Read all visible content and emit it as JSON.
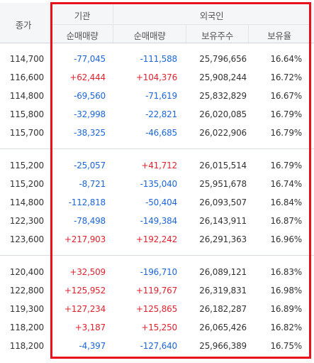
{
  "header": {
    "price_label": "종가",
    "institution_group": "기관",
    "foreign_group": "외국인",
    "institution_net": "순매매량",
    "foreign_net": "순매매량",
    "foreign_shares": "보유주수",
    "foreign_ratio": "보유율"
  },
  "colors": {
    "positive": "#e0222f",
    "negative": "#1c66d8",
    "highlight_border": "#e8111b"
  },
  "groups": [
    {
      "rows": [
        {
          "price": "114,700",
          "inst": "-77,045",
          "foreign": "-111,588",
          "shares": "25,796,656",
          "ratio": "16.64%"
        },
        {
          "price": "116,600",
          "inst": "+62,444",
          "foreign": "+104,376",
          "shares": "25,908,244",
          "ratio": "16.72%"
        },
        {
          "price": "114,800",
          "inst": "-69,560",
          "foreign": "-71,619",
          "shares": "25,832,829",
          "ratio": "16.67%"
        },
        {
          "price": "115,800",
          "inst": "-32,998",
          "foreign": "-22,821",
          "shares": "26,020,085",
          "ratio": "16.79%"
        },
        {
          "price": "115,700",
          "inst": "-38,325",
          "foreign": "-46,685",
          "shares": "26,022,906",
          "ratio": "16.79%"
        }
      ]
    },
    {
      "rows": [
        {
          "price": "115,200",
          "inst": "-25,057",
          "foreign": "+41,712",
          "shares": "26,015,514",
          "ratio": "16.79%"
        },
        {
          "price": "115,200",
          "inst": "-8,721",
          "foreign": "-135,040",
          "shares": "25,951,678",
          "ratio": "16.74%"
        },
        {
          "price": "114,800",
          "inst": "-112,818",
          "foreign": "-50,404",
          "shares": "26,093,507",
          "ratio": "16.84%"
        },
        {
          "price": "122,300",
          "inst": "-78,498",
          "foreign": "-149,384",
          "shares": "26,143,911",
          "ratio": "16.87%"
        },
        {
          "price": "123,600",
          "inst": "+217,903",
          "foreign": "+192,242",
          "shares": "26,291,363",
          "ratio": "16.96%"
        }
      ]
    },
    {
      "rows": [
        {
          "price": "120,400",
          "inst": "+32,509",
          "foreign": "-196,710",
          "shares": "26,089,121",
          "ratio": "16.83%"
        },
        {
          "price": "122,800",
          "inst": "+125,952",
          "foreign": "+119,767",
          "shares": "26,319,831",
          "ratio": "16.98%"
        },
        {
          "price": "119,300",
          "inst": "+127,234",
          "foreign": "+125,865",
          "shares": "26,182,287",
          "ratio": "16.89%"
        },
        {
          "price": "118,200",
          "inst": "+3,187",
          "foreign": "+15,250",
          "shares": "26,065,426",
          "ratio": "16.82%"
        },
        {
          "price": "118,200",
          "inst": "-4,397",
          "foreign": "-127,640",
          "shares": "25,966,389",
          "ratio": "16.75%"
        }
      ]
    }
  ]
}
